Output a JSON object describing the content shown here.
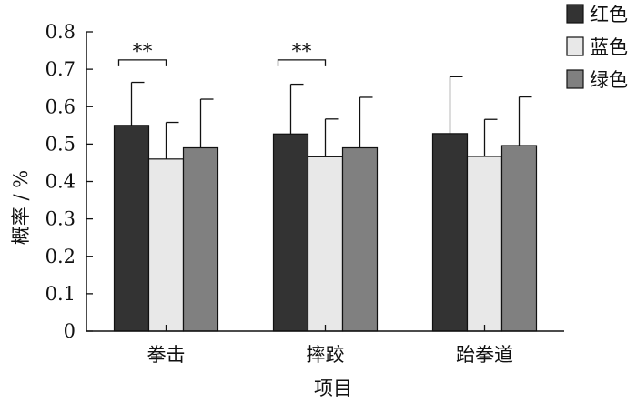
{
  "chart_data": {
    "type": "bar",
    "categories": [
      "拳击",
      "摔跤",
      "跆拳道"
    ],
    "series": [
      {
        "name": "红色",
        "values": [
          0.55,
          0.527,
          0.528
        ],
        "errors": [
          0.115,
          0.133,
          0.152
        ],
        "color": "#333333"
      },
      {
        "name": "蓝色",
        "values": [
          0.46,
          0.466,
          0.467
        ],
        "errors": [
          0.098,
          0.101,
          0.099
        ],
        "color": "#e8e8e8"
      },
      {
        "name": "绿色",
        "values": [
          0.49,
          0.49,
          0.496
        ],
        "errors": [
          0.13,
          0.135,
          0.13
        ],
        "color": "#808080"
      }
    ],
    "xlabel": "项目",
    "ylabel": "概率 / %",
    "ylim": [
      0,
      0.8
    ],
    "yticks": [
      "0",
      "0.1",
      "0.2",
      "0.3",
      "0.4",
      "0.5",
      "0.6",
      "0.7",
      "0.8"
    ],
    "significance": [
      {
        "category": "拳击",
        "series": [
          "红色",
          "蓝色"
        ],
        "label": "**"
      },
      {
        "category": "摔跤",
        "series": [
          "红色",
          "蓝色"
        ],
        "label": "**"
      }
    ],
    "legend_position": "top-right, outside plot",
    "grid": false
  }
}
